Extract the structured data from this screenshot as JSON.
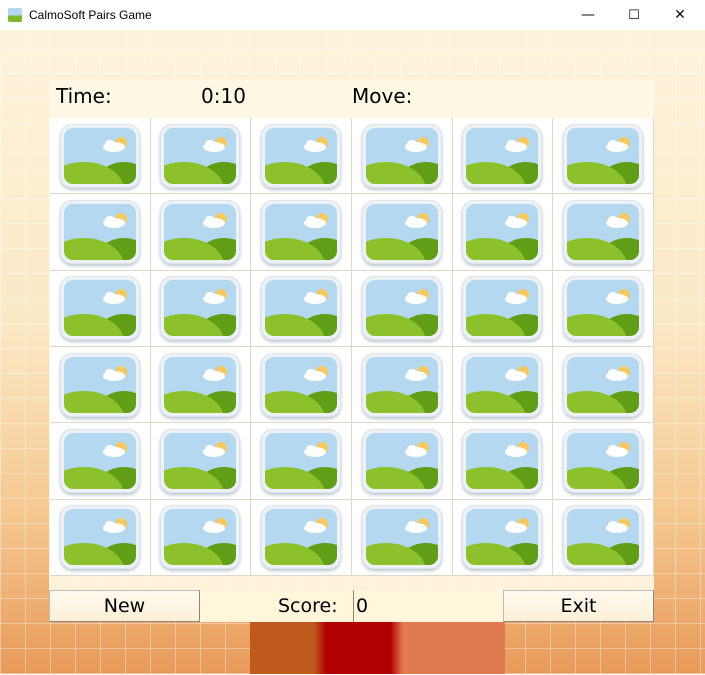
{
  "window": {
    "title": "CalmoSoft Pairs Game",
    "minimize": "—",
    "maximize": "☐",
    "close": "✕"
  },
  "header": {
    "time_label": "Time:",
    "time_value": "0:10",
    "move_label": "Move:",
    "move_value": ""
  },
  "board": {
    "rows": 6,
    "cols": 6,
    "card_state": "face-down",
    "card_icon": "landscape-image-icon"
  },
  "footer": {
    "new_label": "New",
    "score_label": "Score:",
    "score_value": "0",
    "exit_label": "Exit"
  }
}
